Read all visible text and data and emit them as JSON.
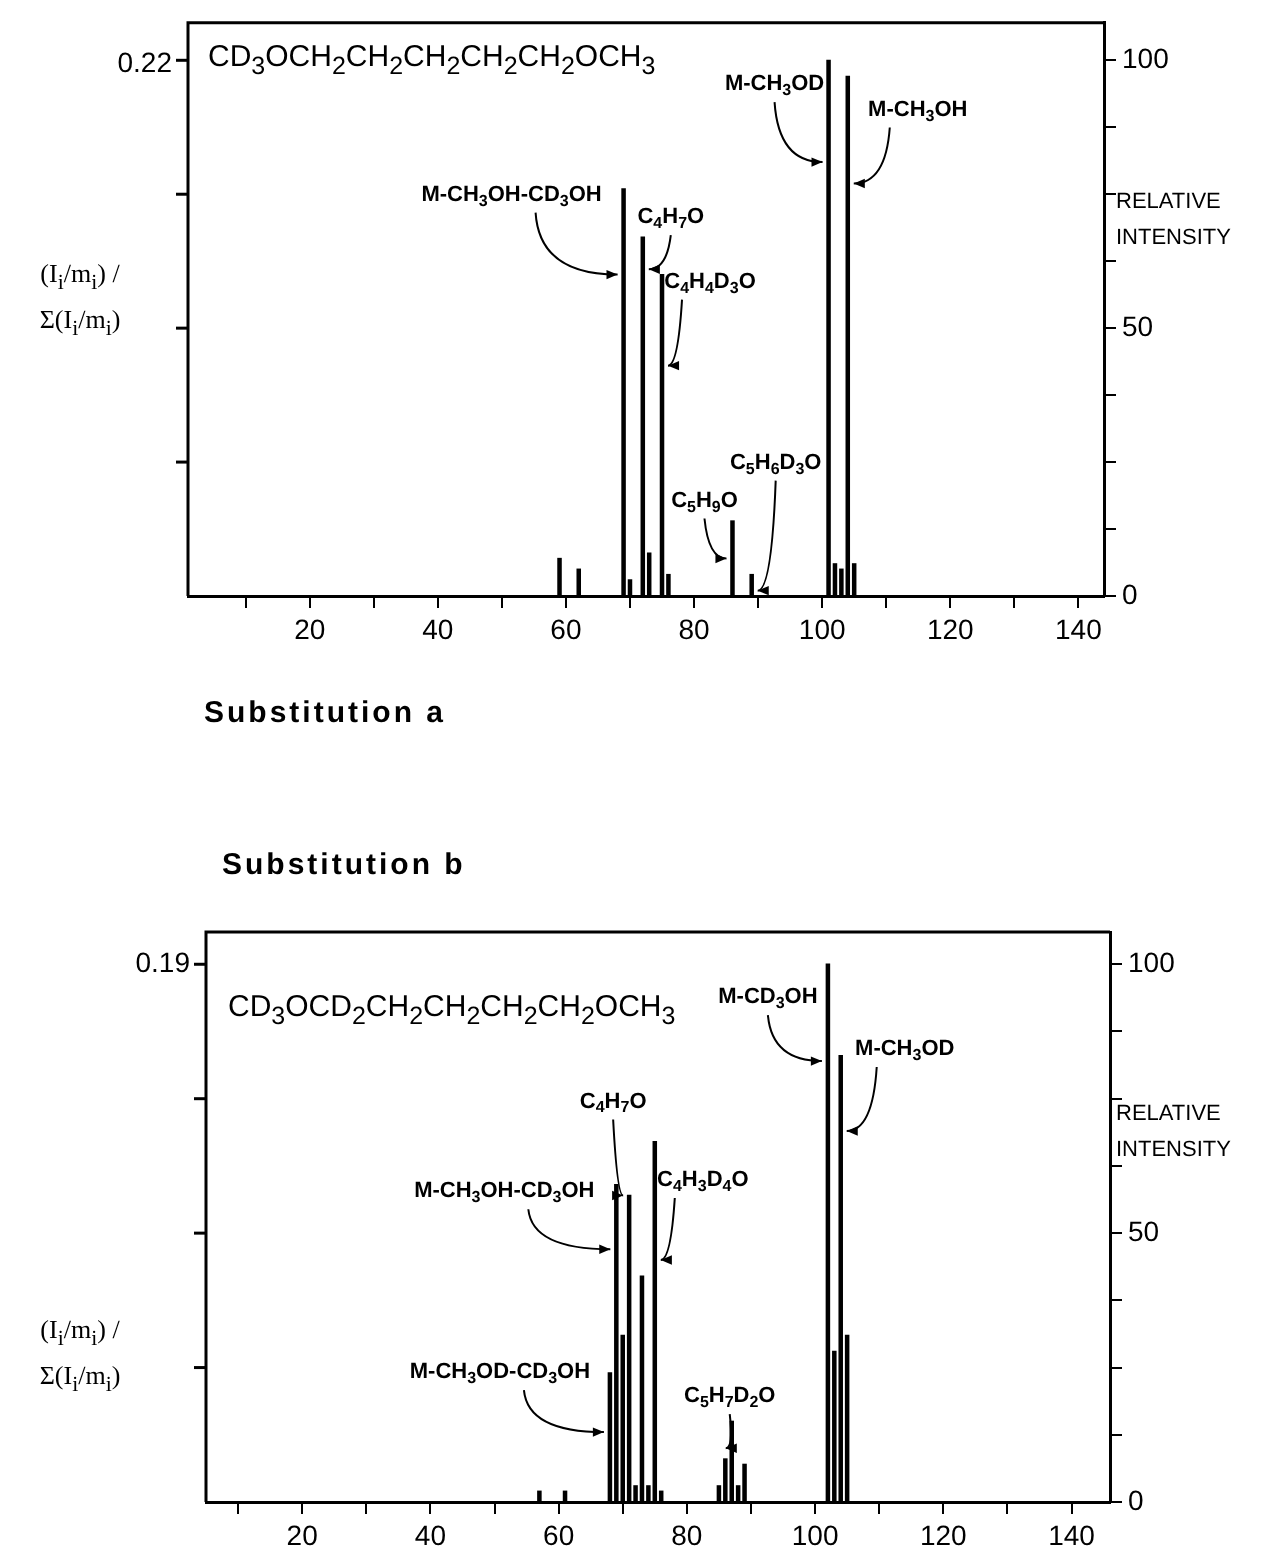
{
  "chart_data": [
    {
      "type": "bar",
      "title": "Substitution a",
      "ylabel": "RELATIVE INTENSITY",
      "xlim": [
        1,
        144
      ],
      "xticks": [
        {
          "value": 10,
          "label": null
        },
        20,
        {
          "value": 30,
          "label": null
        },
        40,
        {
          "value": 50,
          "label": null
        },
        60,
        {
          "value": 70,
          "label": null
        },
        80,
        {
          "value": 90,
          "label": null
        },
        100,
        {
          "value": 110,
          "label": null
        },
        120,
        {
          "value": 130,
          "label": null
        },
        140
      ],
      "ylim": [
        0,
        107
      ],
      "yticks": [
        0,
        {
          "value": 12.5,
          "label": null
        },
        {
          "value": 25,
          "label": null
        },
        {
          "value": 37.5,
          "label": null
        },
        50,
        {
          "value": 62.5,
          "label": null
        },
        {
          "value": 75,
          "label": null
        },
        {
          "value": 87.5,
          "label": null
        },
        100
      ],
      "series": [
        {
          "color": "#000000",
          "x": [
            59,
            62,
            69,
            70,
            72,
            73,
            75,
            76,
            86,
            89,
            101,
            102,
            103,
            104,
            105
          ],
          "values": [
            7,
            5,
            76,
            3,
            67,
            8,
            60,
            4,
            14,
            4,
            100,
            6,
            5,
            97,
            6
          ]
        }
      ],
      "annotations": [
        "CD$_{3}$OCH$_{2}$CH$_{2}$CH$_{2}$CH$_{2}$CH$_{2}$OCH$_{3}$",
        "0.22",
        "(I$_{i}$/m$_{i}$) / Σ(I$_{i}$/m$_{i}$)",
        {
          "text": "M-CH$_{3}$OD",
          "x": 101,
          "y": 81
        },
        {
          "text": "M-CH$_{3}$OH",
          "x": 104,
          "y": 77
        },
        {
          "text": "M-CH$_{3}$OH-CD$_{3}$OH",
          "x": 69,
          "y": 60
        },
        {
          "text": "C$_{4}$H$_{7}$O",
          "x": 72,
          "y": 61
        },
        {
          "text": "C$_{4}$H$_{4}$D$_{3}$O",
          "x": 75,
          "y": 43
        },
        {
          "text": "C$_{5}$H$_{9}$O",
          "x": 86,
          "y": 7
        },
        {
          "text": "C$_{5}$H$_{6}$D$_{3}$O",
          "x": 89,
          "y": 1
        }
      ]
    },
    {
      "type": "bar",
      "title": "Substitution b",
      "ylabel": "RELATIVE INTENSITY",
      "xlim": [
        5,
        146
      ],
      "xticks": [
        {
          "value": 10,
          "label": null
        },
        20,
        {
          "value": 30,
          "label": null
        },
        40,
        {
          "value": 50,
          "label": null
        },
        60,
        {
          "value": 70,
          "label": null
        },
        80,
        {
          "value": 90,
          "label": null
        },
        100,
        {
          "value": 110,
          "label": null
        },
        120,
        {
          "value": 130,
          "label": null
        },
        140
      ],
      "ylim": [
        0,
        106
      ],
      "yticks": [
        0,
        {
          "value": 12.5,
          "label": null
        },
        {
          "value": 25,
          "label": null
        },
        {
          "value": 37.5,
          "label": null
        },
        50,
        {
          "value": 62.5,
          "label": null
        },
        {
          "value": 75,
          "label": null
        },
        {
          "value": 87.5,
          "label": null
        },
        100
      ],
      "series": [
        {
          "color": "#000000",
          "x": [
            57,
            61,
            68,
            69,
            70,
            71,
            72,
            73,
            74,
            75,
            76,
            85,
            86,
            87,
            88,
            89,
            102,
            103,
            104,
            105
          ],
          "values": [
            2,
            2,
            24,
            59,
            31,
            57,
            3,
            42,
            3,
            67,
            2,
            3,
            8,
            15,
            3,
            7,
            100,
            28,
            83,
            31
          ]
        }
      ],
      "annotations": [
        "CD$_{3}$OCD$_{2}$CH$_{2}$CH$_{2}$CH$_{2}$CH$_{2}$OCH$_{3}$",
        "0.19",
        "(I$_{i}$/m$_{i}$) / Σ(I$_{i}$/m$_{i}$)",
        {
          "text": "M-CD$_{3}$OH",
          "x": 102,
          "y": 82
        },
        {
          "text": "M-CH$_{3}$OD",
          "x": 104,
          "y": 69
        },
        {
          "text": "C$_{4}$H$_{7}$O",
          "x": 71,
          "y": 57
        },
        {
          "text": "M-CH$_{3}$OH-CD$_{3}$OH",
          "x": 69,
          "y": 47
        },
        {
          "text": "C$_{4}$H$_{3}$D$_{4}$O",
          "x": 75,
          "y": 45
        },
        {
          "text": "M-CH$_{3}$OD-CD$_{3}$OH",
          "x": 68,
          "y": 13
        },
        {
          "text": "C$_{5}$H$_{7}$D$_{2}$O",
          "x": 87,
          "y": 10
        }
      ]
    }
  ]
}
